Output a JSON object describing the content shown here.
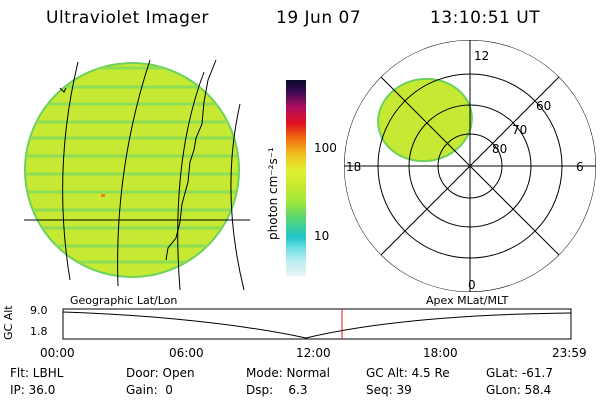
{
  "header": {
    "title": "Ultraviolet Imager",
    "date": "19 Jun 07",
    "time": "13:10:51 UT"
  },
  "colorbar": {
    "unit_label": "photon cm⁻²s⁻¹",
    "ticks": [
      "100",
      "10"
    ]
  },
  "polar_plot": {
    "mlt_labels": [
      "12",
      "18",
      "6",
      "0"
    ],
    "mlat_labels": [
      "60",
      "70",
      "80"
    ]
  },
  "altitude_panel": {
    "ylabel": "GC Alt",
    "ytick_top": "9.0",
    "ytick_bottom": "1.8",
    "left_title": "Geographic Lat/Lon",
    "right_title": "Apex MLat/MLT",
    "x_ticks": [
      "00:00",
      "06:00",
      "12:00",
      "18:00",
      "23:59"
    ],
    "cursor_time": "13:10"
  },
  "status": {
    "flt": "Flt: LBHL",
    "ip": "IP: 36.0",
    "door": "Door: Open",
    "gain": "Gain:  0",
    "mode": "Mode: Normal",
    "dsp": "Dsp:    6.3",
    "gc_alt": "GC Alt: 4.5 Re",
    "seq": "Seq: 39",
    "glat": "GLat: -61.7",
    "glon": "GLon: 58.4"
  },
  "colors": {
    "image_fill": "#c6ea33",
    "stripe": "#7ed957",
    "cursor": "#e0141a"
  }
}
